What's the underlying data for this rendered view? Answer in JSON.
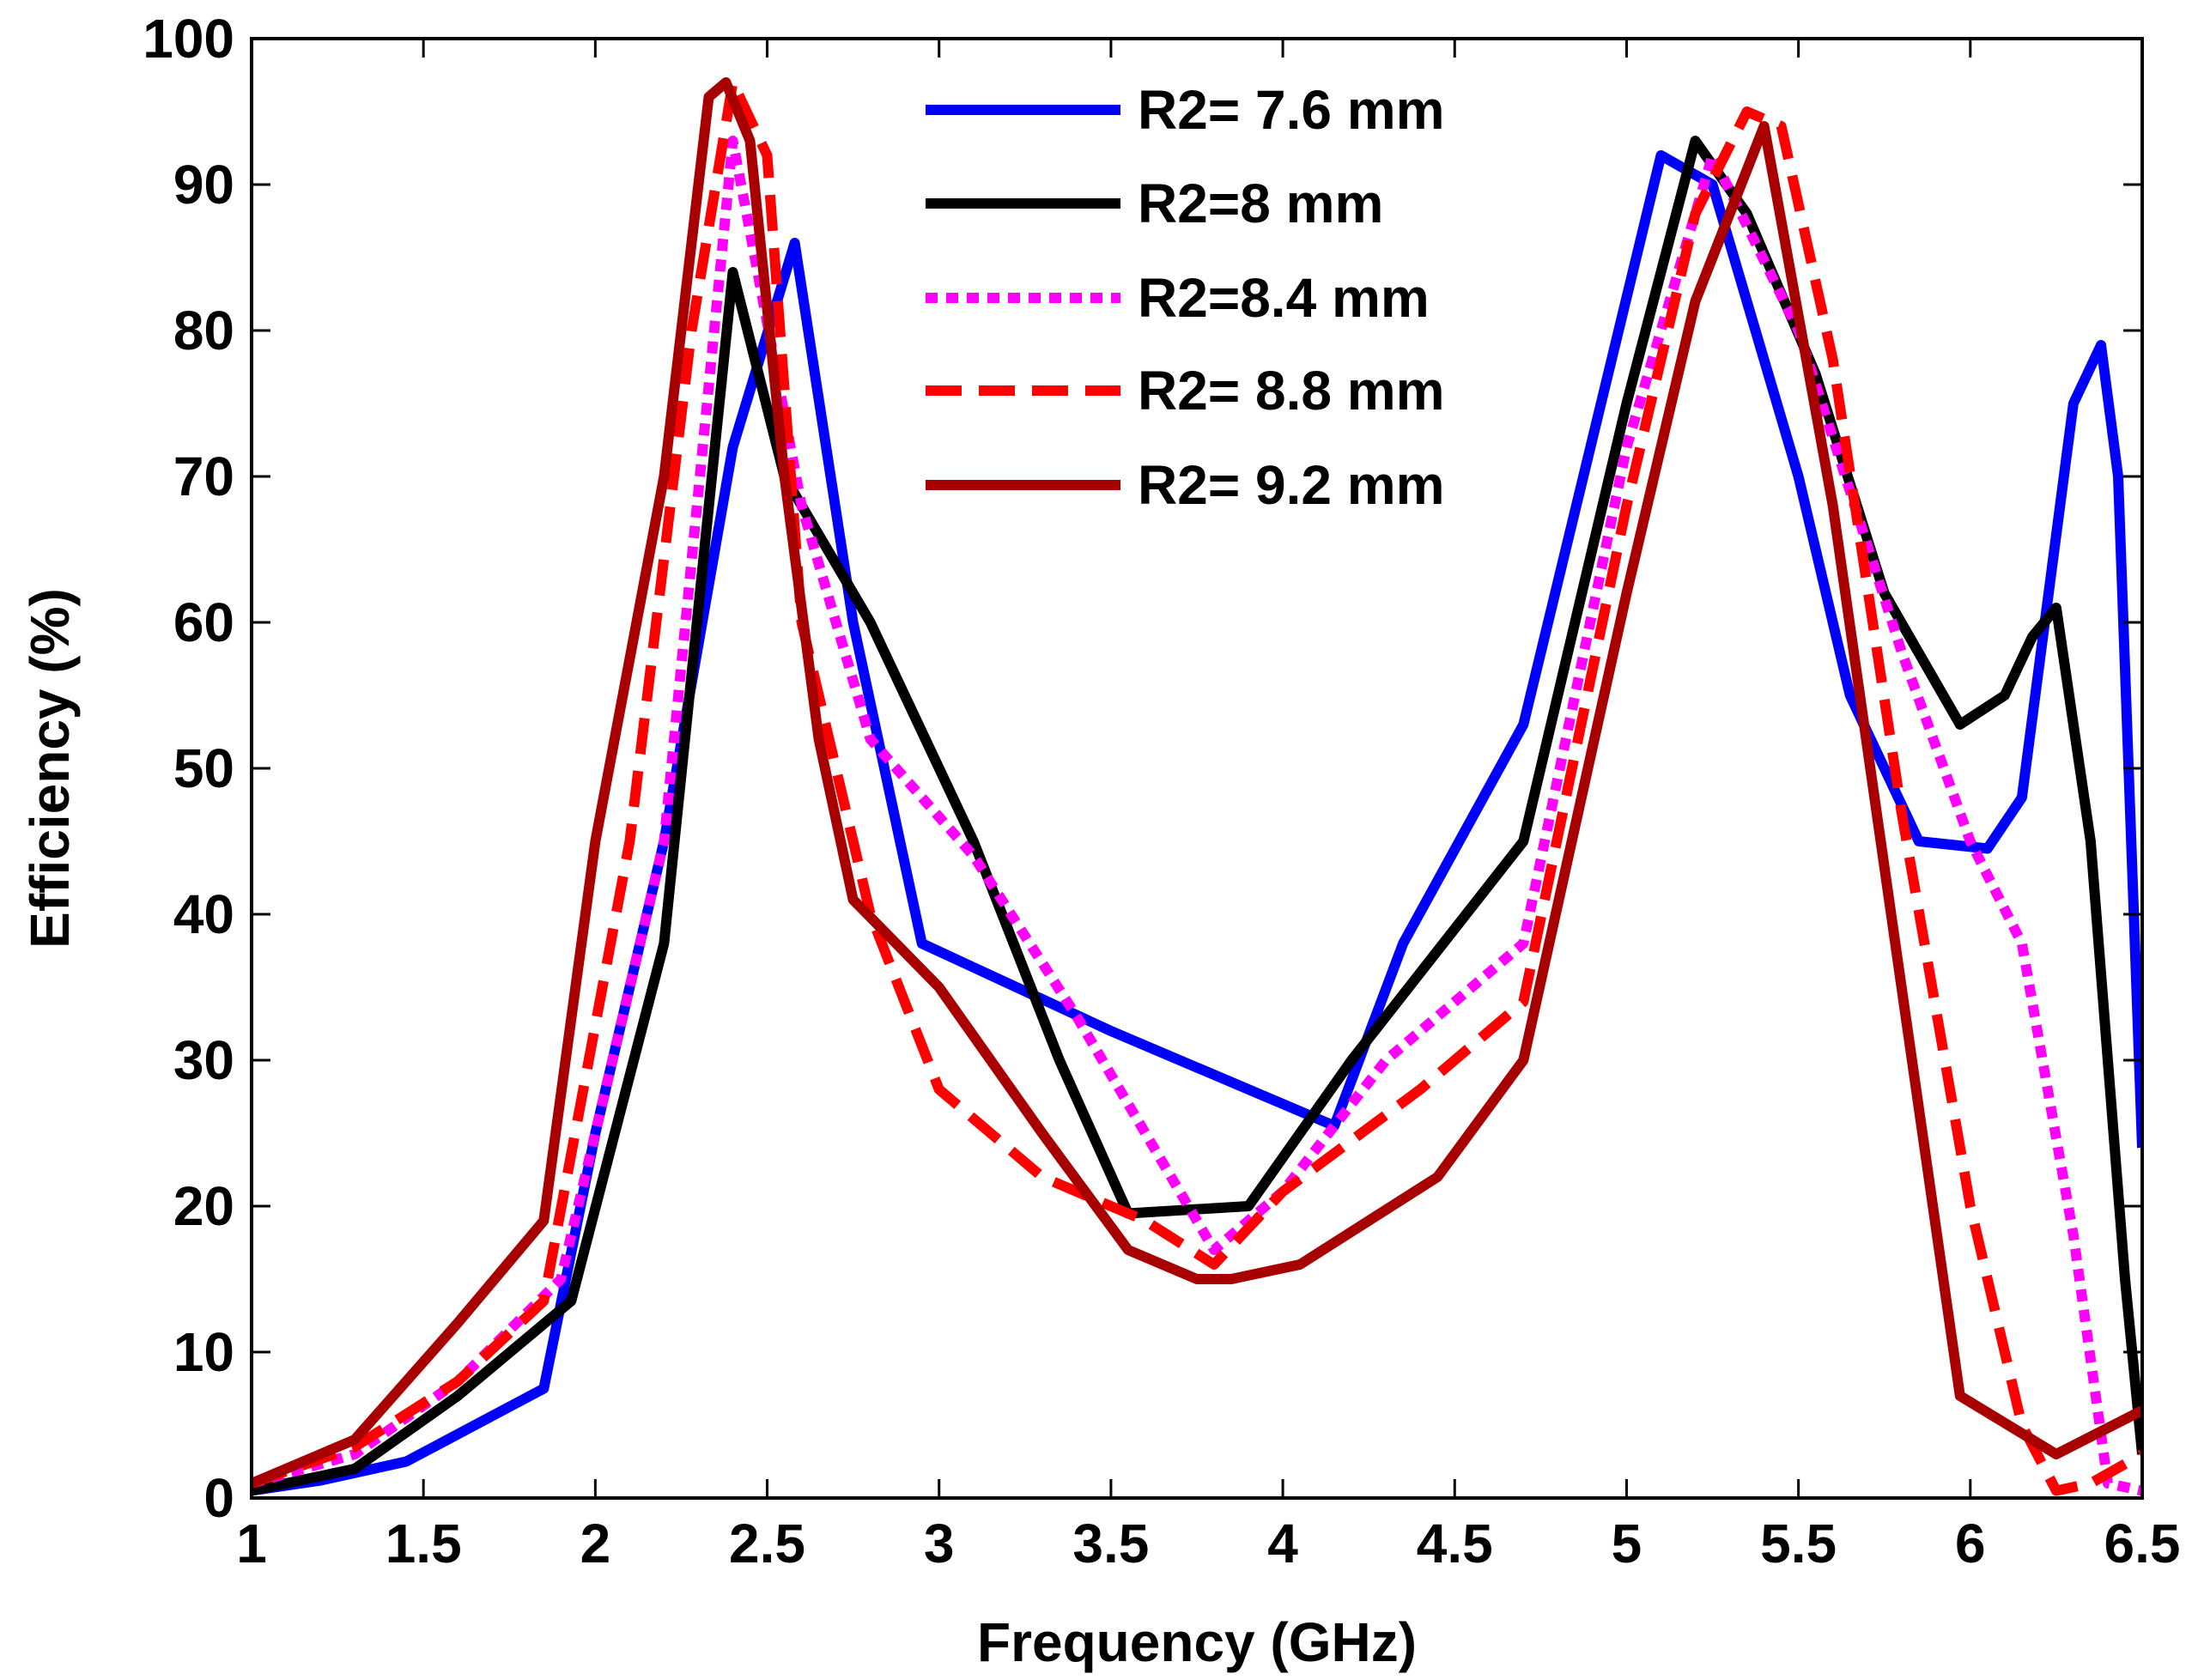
{
  "chart_data": {
    "type": "line",
    "xlabel": "Frequency (GHz)",
    "ylabel": "Efficiency (%)",
    "xlim": [
      1,
      6.5
    ],
    "ylim": [
      0,
      100
    ],
    "xticks": [
      1,
      1.5,
      2,
      2.5,
      3,
      3.5,
      4,
      4.5,
      5,
      5.5,
      6,
      6.5
    ],
    "xtick_labels": [
      "1",
      "1.5",
      "2",
      "2.5",
      "3",
      "3.5",
      "4",
      "4.5",
      "5",
      "5.5",
      "6",
      "6.5"
    ],
    "yticks": [
      0,
      10,
      20,
      30,
      40,
      50,
      60,
      70,
      80,
      90,
      100
    ],
    "ytick_labels": [
      "0",
      "10",
      "20",
      "30",
      "40",
      "50",
      "60",
      "70",
      "80",
      "90",
      "100"
    ],
    "legend_position": "top-center",
    "series": [
      {
        "name": "R2= 7.6 mm",
        "color": "#0000FF",
        "style": "solid",
        "x": [
          1.0,
          1.2,
          1.45,
          1.85,
          2.0,
          2.2,
          2.4,
          2.58,
          2.75,
          2.95,
          3.5,
          4.15,
          4.35,
          4.7,
          5.1,
          5.25,
          5.5,
          5.65,
          5.85,
          6.05,
          6.15,
          6.3,
          6.38,
          6.43,
          6.5
        ],
        "y": [
          0.5,
          1.2,
          2.5,
          7.5,
          25,
          45,
          72,
          86,
          60,
          38,
          32,
          25.5,
          38,
          53,
          92,
          90,
          70,
          55,
          45,
          44.5,
          48,
          75,
          79,
          70,
          24
        ]
      },
      {
        "name": "R2=8 mm",
        "color": "#000000",
        "style": "solid",
        "x": [
          1.0,
          1.3,
          1.6,
          1.93,
          2.2,
          2.4,
          2.55,
          2.8,
          3.1,
          3.35,
          3.55,
          3.9,
          4.2,
          4.7,
          5.0,
          5.2,
          5.35,
          5.55,
          5.75,
          5.97,
          6.1,
          6.18,
          6.25,
          6.35,
          6.45,
          6.5
        ],
        "y": [
          0.5,
          2.0,
          7.0,
          13.5,
          38,
          84,
          70,
          60,
          45,
          30,
          19.5,
          20,
          30,
          45,
          75,
          93,
          88,
          77,
          62,
          53,
          55,
          59,
          61,
          45,
          15,
          3
        ]
      },
      {
        "name": "R2=8.4 mm",
        "color": "#FF00FF",
        "style": "dotted",
        "x": [
          1.0,
          1.3,
          1.6,
          1.9,
          2.2,
          2.4,
          2.6,
          2.8,
          3.1,
          3.4,
          3.8,
          4.0,
          4.3,
          4.7,
          5.0,
          5.25,
          5.5,
          5.8,
          6.0,
          6.15,
          6.3,
          6.4,
          6.5
        ],
        "y": [
          1.0,
          3.0,
          8.0,
          15.0,
          45,
          93,
          68,
          52,
          44,
          33,
          17,
          21,
          30,
          38,
          72,
          92,
          80,
          58,
          45,
          38,
          18,
          1,
          0.5
        ]
      },
      {
        "name": "R2= 8.8 mm",
        "color": "#FF0000",
        "style": "dashed",
        "x": [
          1.0,
          1.3,
          1.6,
          1.85,
          2.1,
          2.28,
          2.4,
          2.5,
          2.6,
          2.8,
          3.0,
          3.3,
          3.6,
          3.8,
          4.0,
          4.4,
          4.7,
          5.0,
          5.2,
          5.35,
          5.45,
          5.6,
          5.8,
          6.0,
          6.15,
          6.25,
          6.35,
          6.5
        ],
        "y": [
          1.0,
          3.5,
          8.0,
          13.5,
          45,
          80,
          97,
          92,
          60,
          40,
          28,
          22,
          19,
          16,
          21,
          28,
          34,
          68,
          88,
          95,
          94,
          78,
          47,
          20,
          5,
          0.5,
          1,
          3
        ]
      },
      {
        "name": "R2= 9.2 mm",
        "color": "#A80000",
        "style": "solid",
        "x": [
          1.0,
          1.3,
          1.6,
          1.85,
          2.0,
          2.2,
          2.33,
          2.38,
          2.45,
          2.55,
          2.65,
          2.75,
          3.0,
          3.3,
          3.55,
          3.75,
          3.85,
          4.05,
          4.45,
          4.7,
          5.0,
          5.2,
          5.4,
          5.6,
          5.8,
          5.97,
          6.25,
          6.5
        ],
        "y": [
          1.0,
          4.0,
          12.0,
          19.0,
          45,
          70,
          96,
          97,
          93,
          70,
          52,
          41,
          35,
          25,
          17,
          15,
          15,
          16,
          22,
          30,
          62,
          82,
          94,
          68,
          35,
          7,
          3,
          6
        ]
      }
    ]
  }
}
